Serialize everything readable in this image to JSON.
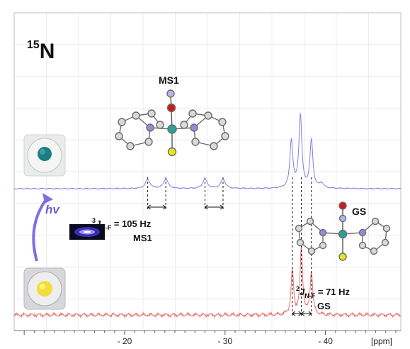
{
  "chart_data": {
    "type": "line",
    "title": "15N",
    "nucleus": {
      "mass": "15",
      "symbol": "N"
    },
    "xlabel": "[ppm]",
    "x_axis_reversed": true,
    "xlim": [
      -9,
      -47.5
    ],
    "xticks": [
      {
        "value": -20,
        "label": "- 20"
      },
      {
        "value": -30,
        "label": "- 30"
      },
      {
        "value": -40,
        "label": "- 40"
      }
    ],
    "grid": true,
    "series": [
      {
        "name": "MS1",
        "color": "#7f7fe6",
        "peaks": [
          {
            "ppm": -22.3,
            "height": 0.22,
            "width": 0.55
          },
          {
            "ppm": -24.1,
            "height": 0.22,
            "width": 0.55
          },
          {
            "ppm": -28.0,
            "height": 0.22,
            "width": 0.55
          },
          {
            "ppm": -29.8,
            "height": 0.22,
            "width": 0.55
          },
          {
            "ppm": -36.6,
            "height": 1.12,
            "width": 0.35
          },
          {
            "ppm": -37.5,
            "height": 1.71,
            "width": 0.35
          },
          {
            "ppm": -38.6,
            "height": 1.13,
            "width": 0.35
          },
          {
            "ppm": -39.6,
            "height": 0.12,
            "width": 0.45
          }
        ]
      },
      {
        "name": "GS",
        "color": "#ee6e6e",
        "peaks": [
          {
            "ppm": -36.7,
            "height": 1.02,
            "width": 0.3
          },
          {
            "ppm": -37.6,
            "height": 1.56,
            "width": 0.3
          },
          {
            "ppm": -38.6,
            "height": 1.02,
            "width": 0.3
          }
        ]
      }
    ],
    "annotations": {
      "ms1_molecule_label": "MS1",
      "gs_molecule_label": "GS",
      "ms1_coupling": {
        "prefix": "3",
        "J": "J",
        "sub": "N-F",
        "value": " = 105 Hz"
      },
      "ms1_coupling_species": "MS1",
      "gs_coupling": {
        "prefix": "2",
        "J": "J",
        "sub": "N-F",
        "value": " = 71 Hz"
      },
      "gs_coupling_species": "GS",
      "irradiation": "hv"
    }
  }
}
